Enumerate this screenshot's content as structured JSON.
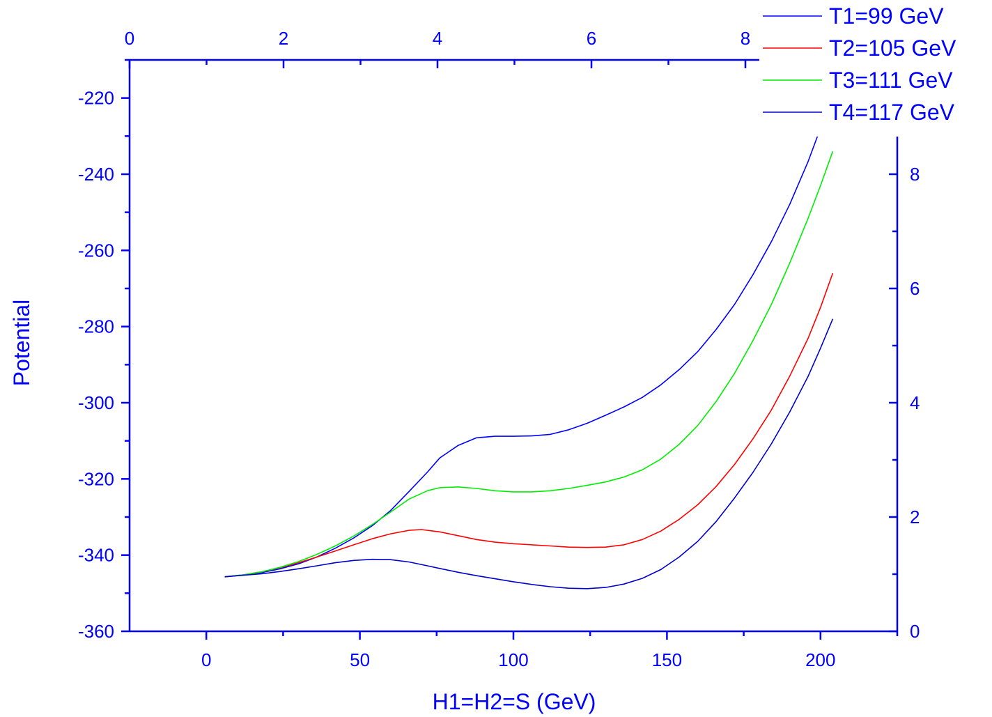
{
  "chart_data": {
    "type": "line",
    "xlabel": "H1=H2=S (GeV)",
    "ylabel": "Potential",
    "x_range": [
      -25,
      225
    ],
    "y_range": [
      -360,
      -210
    ],
    "x_ticks": [
      0,
      50,
      100,
      150,
      200
    ],
    "y_ticks": [
      -360,
      -340,
      -320,
      -300,
      -280,
      -260,
      -240,
      -220
    ],
    "top_axis": {
      "range": [
        0,
        8
      ],
      "ticks": [
        0,
        2,
        4,
        6,
        8
      ]
    },
    "right_axis": {
      "range": [
        0,
        8
      ],
      "ticks": [
        0,
        2,
        4,
        6,
        8
      ]
    },
    "legend_position": "top-right",
    "axis_color": "#0000ff",
    "series": [
      {
        "name": "T1=99 GeV",
        "color": "#0000ff",
        "x": [
          6,
          12,
          18,
          24,
          30,
          36,
          42,
          48,
          54,
          60,
          66,
          72,
          76,
          82,
          88,
          94,
          100,
          106,
          112,
          118,
          124,
          130,
          136,
          142,
          148,
          154,
          160,
          166,
          172,
          178,
          184,
          190,
          196,
          199.5
        ],
        "y": [
          -345.7,
          -345.2,
          -344.6,
          -343.6,
          -342.3,
          -340.5,
          -338.2,
          -335.5,
          -332.3,
          -328.3,
          -323.3,
          -318.2,
          -314.5,
          -311.2,
          -309.2,
          -308.8,
          -308.8,
          -308.7,
          -308.3,
          -307.1,
          -305.4,
          -303.3,
          -301.1,
          -298.6,
          -295.3,
          -291.3,
          -286.6,
          -280.8,
          -274.2,
          -266.4,
          -257.7,
          -247.9,
          -236.6,
          -229
        ]
      },
      {
        "name": "T2=105 GeV",
        "color": "#ff0000",
        "x": [
          6,
          12,
          18,
          24,
          30,
          36,
          42,
          48,
          54,
          60,
          66,
          70,
          76,
          82,
          88,
          94,
          100,
          106,
          112,
          118,
          124,
          130,
          136,
          142,
          148,
          154,
          160,
          166,
          172,
          178,
          184,
          190,
          196,
          200,
          204
        ],
        "y": [
          -345.7,
          -345.2,
          -344.4,
          -343.3,
          -342,
          -340.5,
          -338.9,
          -337.3,
          -335.7,
          -334.4,
          -333.5,
          -333.3,
          -333.9,
          -334.9,
          -335.9,
          -336.6,
          -337,
          -337.3,
          -337.6,
          -337.9,
          -338,
          -337.9,
          -337.3,
          -335.9,
          -333.7,
          -330.6,
          -326.8,
          -322,
          -316.2,
          -309.5,
          -301.9,
          -293,
          -283,
          -275,
          -266
        ]
      },
      {
        "name": "T3=111 GeV",
        "color": "#00ee00",
        "x": [
          6,
          12,
          18,
          24,
          30,
          36,
          42,
          48,
          54,
          60,
          66,
          72,
          76,
          82,
          88,
          94,
          100,
          106,
          112,
          118,
          124,
          130,
          136,
          142,
          148,
          154,
          160,
          166,
          172,
          178,
          184,
          190,
          196,
          200,
          204
        ],
        "y": [
          -345.7,
          -345.2,
          -344.4,
          -343.2,
          -341.7,
          -339.8,
          -337.6,
          -335,
          -332,
          -328.7,
          -325.3,
          -323.1,
          -322.3,
          -322.1,
          -322.5,
          -323.1,
          -323.4,
          -323.4,
          -323.1,
          -322.5,
          -321.7,
          -320.8,
          -319.5,
          -317.6,
          -314.8,
          -310.9,
          -306,
          -299.7,
          -292.3,
          -283.7,
          -274.2,
          -263.3,
          -251.5,
          -243,
          -234
        ]
      },
      {
        "name": "T4=117 GeV",
        "color": "#0000cc",
        "x": [
          6,
          12,
          18,
          24,
          30,
          36,
          42,
          48,
          54,
          60,
          66,
          72,
          76,
          82,
          88,
          94,
          100,
          106,
          112,
          118,
          124,
          130,
          136,
          142,
          148,
          154,
          160,
          166,
          172,
          178,
          184,
          190,
          196,
          200,
          204
        ],
        "y": [
          -345.7,
          -345.3,
          -344.9,
          -344.3,
          -343.6,
          -342.8,
          -342,
          -341.4,
          -341.1,
          -341.2,
          -341.8,
          -342.8,
          -343.5,
          -344.5,
          -345.4,
          -346.2,
          -347,
          -347.7,
          -348.3,
          -348.7,
          -348.8,
          -348.5,
          -347.6,
          -346.1,
          -343.8,
          -340.5,
          -336.4,
          -331.2,
          -325,
          -318.3,
          -310.8,
          -302.4,
          -293,
          -285.7,
          -278
        ]
      }
    ]
  }
}
